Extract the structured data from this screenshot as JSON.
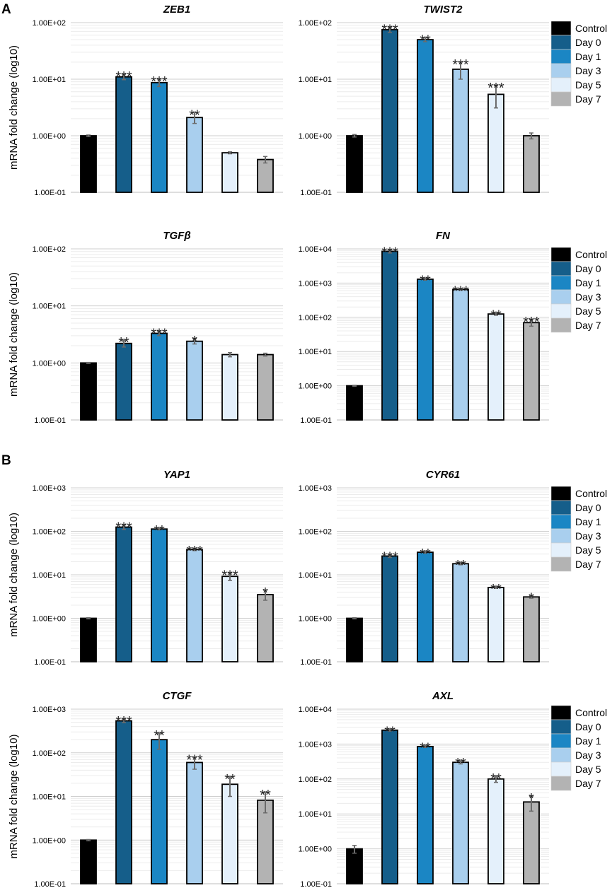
{
  "panels": [
    "A",
    "B"
  ],
  "legend": {
    "entries": [
      "Control",
      "Day 0",
      "Day 1",
      "Day 3",
      "Day 5",
      "Day 7"
    ],
    "colors": [
      "#000000",
      "#155e8a",
      "#1b86c4",
      "#a9cfee",
      "#e4f0fb",
      "#b3b3b3"
    ]
  },
  "chart_data": [
    {
      "type": "bar",
      "panel": "A",
      "title": "ZEB1",
      "ylabel": "mRNA fold change (log10)",
      "yscale": "log",
      "ylim": [
        0.1,
        100
      ],
      "yticks": [
        "1.00E-01",
        "1.00E+00",
        "1.00E+01",
        "1.00E+02"
      ],
      "categories": [
        "Control",
        "Day 0",
        "Day 1",
        "Day 3",
        "Day 5",
        "Day 7"
      ],
      "values": [
        1.0,
        11,
        8.7,
        2.1,
        0.5,
        0.38
      ],
      "errors": [
        0.03,
        1.2,
        1.3,
        0.45,
        0.02,
        0.05
      ],
      "significance": [
        "",
        "***",
        "***",
        "**",
        "",
        ""
      ]
    },
    {
      "type": "bar",
      "panel": "A",
      "title": "TWIST2",
      "ylabel": "",
      "yscale": "log",
      "ylim": [
        0.1,
        100
      ],
      "yticks": [
        "1.00E-01",
        "1.00E+00",
        "1.00E+01",
        "1.00E+02"
      ],
      "categories": [
        "Control",
        "Day 0",
        "Day 1",
        "Day 3",
        "Day 5",
        "Day 7"
      ],
      "values": [
        1.0,
        75,
        50,
        15,
        5.4,
        1.0
      ],
      "errors": [
        0.05,
        8,
        4,
        5,
        2.3,
        0.12
      ],
      "significance": [
        "",
        "***",
        "**",
        "***",
        "***",
        ""
      ]
    },
    {
      "type": "bar",
      "panel": "A",
      "title": "TGFβ",
      "ylabel": "mRNA fold change (log10)",
      "yscale": "log",
      "ylim": [
        0.1,
        100
      ],
      "yticks": [
        "1.00E-01",
        "1.00E+00",
        "1.00E+01",
        "1.00E+02"
      ],
      "categories": [
        "Control",
        "Day 0",
        "Day 1",
        "Day 3",
        "Day 5",
        "Day 7"
      ],
      "values": [
        1.0,
        2.2,
        3.3,
        2.4,
        1.4,
        1.4
      ],
      "errors": [
        0.02,
        0.3,
        0.3,
        0.25,
        0.12,
        0.08
      ],
      "significance": [
        "",
        "**",
        "***",
        "*",
        "",
        ""
      ]
    },
    {
      "type": "bar",
      "panel": "A",
      "title": "FN",
      "ylabel": "",
      "yscale": "log",
      "ylim": [
        0.1,
        10000
      ],
      "yticks": [
        "1.00E-01",
        "1.00E+00",
        "1.00E+01",
        "1.00E+02",
        "1.00E+03",
        "1.00E+04"
      ],
      "categories": [
        "Control",
        "Day 0",
        "Day 1",
        "Day 3",
        "Day 5",
        "Day 7"
      ],
      "values": [
        1.0,
        8500,
        1300,
        650,
        125,
        70
      ],
      "errors": [
        0.03,
        900,
        80,
        30,
        10,
        15
      ],
      "significance": [
        "",
        "***",
        "**",
        "***",
        "**",
        "***"
      ]
    },
    {
      "type": "bar",
      "panel": "B",
      "title": "YAP1",
      "ylabel": "mRNA fold change (log10)",
      "yscale": "log",
      "ylim": [
        0.1,
        1000
      ],
      "yticks": [
        "1.00E-01",
        "1.00E+00",
        "1.00E+01",
        "1.00E+02",
        "1.00E+03"
      ],
      "categories": [
        "Control",
        "Day 0",
        "Day 1",
        "Day 3",
        "Day 5",
        "Day 7"
      ],
      "values": [
        1.0,
        125,
        113,
        38,
        9.2,
        3.5
      ],
      "errors": [
        0.03,
        15,
        5,
        2,
        1.8,
        0.9
      ],
      "significance": [
        "",
        "***",
        "**",
        "***",
        "***",
        "*"
      ]
    },
    {
      "type": "bar",
      "panel": "B",
      "title": "CYR61",
      "ylabel": "",
      "yscale": "log",
      "ylim": [
        0.1,
        1000
      ],
      "yticks": [
        "1.00E-01",
        "1.00E+00",
        "1.00E+01",
        "1.00E+02",
        "1.00E+03"
      ],
      "categories": [
        "Control",
        "Day 0",
        "Day 1",
        "Day 3",
        "Day 5",
        "Day 7"
      ],
      "values": [
        1.0,
        27,
        33,
        18,
        5.1,
        3.1
      ],
      "errors": [
        0.03,
        2,
        1.5,
        1,
        0.2,
        0.2
      ],
      "significance": [
        "",
        "***",
        "**",
        "**",
        "**",
        "*"
      ]
    },
    {
      "type": "bar",
      "panel": "B",
      "title": "CTGF",
      "ylabel": "mRNA fold change (log10)",
      "yscale": "log",
      "ylim": [
        0.1,
        1000
      ],
      "yticks": [
        "1.00E-01",
        "1.00E+00",
        "1.00E+01",
        "1.00E+02",
        "1.00E+03"
      ],
      "categories": [
        "Control",
        "Day 0",
        "Day 1",
        "Day 3",
        "Day 5",
        "Day 7"
      ],
      "values": [
        1.0,
        540,
        200,
        60,
        19,
        8.2
      ],
      "errors": [
        0.03,
        50,
        80,
        18,
        9,
        4
      ],
      "significance": [
        "",
        "***",
        "**",
        "***",
        "**",
        "**"
      ]
    },
    {
      "type": "bar",
      "panel": "B",
      "title": "AXL",
      "ylabel": "",
      "yscale": "log",
      "ylim": [
        0.1,
        10000
      ],
      "yticks": [
        "1.00E-01",
        "1.00E+00",
        "1.00E+01",
        "1.00E+02",
        "1.00E+03",
        "1.00E+04"
      ],
      "categories": [
        "Control",
        "Day 0",
        "Day 1",
        "Day 3",
        "Day 5",
        "Day 7"
      ],
      "values": [
        1.0,
        2500,
        850,
        300,
        100,
        22
      ],
      "errors": [
        0.25,
        150,
        50,
        30,
        20,
        10
      ],
      "significance": [
        "",
        "**",
        "**",
        "**",
        "**",
        "*"
      ]
    }
  ]
}
